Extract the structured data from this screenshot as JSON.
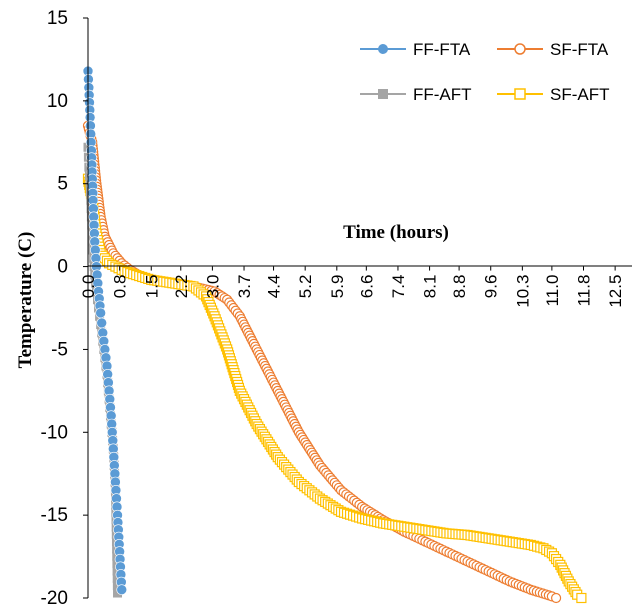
{
  "chart_data": {
    "type": "scatter",
    "title": "",
    "xlabel": "Time (hours)",
    "ylabel": "Temperature (C)",
    "ylim": [
      -20,
      15
    ],
    "xlim": [
      0,
      12.9
    ],
    "y_ticks": [
      "15",
      "10",
      "5",
      "0",
      "-5",
      "-10",
      "-15",
      "-20"
    ],
    "x_ticks": [
      "0.0",
      "0.8",
      "1.5",
      "2.2",
      "3.0",
      "3.7",
      "4.4",
      "5.2",
      "5.9",
      "6.6",
      "7.4",
      "8.1",
      "8.8",
      "9.6",
      "10.3",
      "11.0",
      "11.8",
      "12.5"
    ],
    "x_tick_values": [
      0.0,
      0.75,
      1.5,
      2.2,
      2.95,
      3.7,
      4.4,
      5.15,
      5.9,
      6.6,
      7.35,
      8.1,
      8.8,
      9.55,
      10.3,
      11.0,
      11.75,
      12.5
    ],
    "grid": false,
    "legend_position": "top-right",
    "series": [
      {
        "name": "FF-FTA",
        "color": "#5b9bd5",
        "marker": "filled-circle",
        "x": [
          0.0,
          0.02,
          0.05,
          0.08,
          0.12,
          0.16,
          0.2,
          0.25,
          0.3,
          0.35,
          0.4,
          0.45,
          0.5,
          0.55,
          0.6,
          0.65,
          0.7,
          0.75,
          0.8
        ],
        "y": [
          11.8,
          10.8,
          9.0,
          7.0,
          4.0,
          1.5,
          0.0,
          -1.5,
          -2.8,
          -4.0,
          -5.0,
          -6.0,
          -7.5,
          -9.0,
          -11.0,
          -13.0,
          -15.0,
          -17.2,
          -19.5
        ]
      },
      {
        "name": "SF-FTA",
        "color": "#ed7d31",
        "marker": "open-circle",
        "x": [
          0.0,
          0.1,
          0.2,
          0.3,
          0.4,
          0.6,
          0.8,
          1.0,
          1.2,
          1.5,
          2.0,
          2.5,
          3.0,
          3.3,
          3.6,
          4.0,
          4.5,
          5.0,
          5.5,
          6.0,
          6.5,
          7.0,
          7.5,
          8.0,
          8.5,
          9.0,
          9.5,
          10.0,
          10.5,
          11.0,
          11.1
        ],
        "y": [
          8.5,
          7.5,
          5.0,
          3.0,
          1.8,
          0.8,
          0.2,
          -0.2,
          -0.5,
          -0.8,
          -1.0,
          -1.2,
          -1.5,
          -2.0,
          -3.0,
          -5.0,
          -7.5,
          -10.0,
          -12.0,
          -13.5,
          -14.5,
          -15.3,
          -16.0,
          -16.6,
          -17.2,
          -17.8,
          -18.4,
          -19.0,
          -19.5,
          -19.9,
          -20.0
        ]
      },
      {
        "name": "FF-AFT",
        "color": "#a5a5a5",
        "marker": "filled-square",
        "x": [
          0.0,
          0.02,
          0.05,
          0.08,
          0.12,
          0.16,
          0.2,
          0.25,
          0.3,
          0.35,
          0.4,
          0.45,
          0.5,
          0.55,
          0.6,
          0.65,
          0.7
        ],
        "y": [
          7.2,
          6.0,
          5.0,
          3.0,
          1.0,
          -0.5,
          -1.5,
          -2.5,
          -3.5,
          -4.5,
          -5.5,
          -6.5,
          -8.0,
          -9.5,
          -11.0,
          -13.5,
          -19.7
        ]
      },
      {
        "name": "SF-AFT",
        "color": "#ffc000",
        "marker": "open-square",
        "x": [
          0.0,
          0.1,
          0.2,
          0.3,
          0.5,
          0.8,
          1.0,
          1.5,
          2.0,
          2.5,
          2.8,
          3.0,
          3.3,
          3.6,
          4.0,
          4.5,
          5.0,
          5.5,
          6.0,
          6.5,
          7.0,
          7.5,
          8.0,
          8.5,
          9.0,
          9.5,
          10.0,
          10.5,
          10.8,
          11.0,
          11.2,
          11.4,
          11.6,
          11.7
        ],
        "y": [
          5.3,
          4.0,
          2.0,
          0.8,
          0.2,
          -0.2,
          -0.4,
          -0.8,
          -1.0,
          -1.2,
          -1.8,
          -3.0,
          -5.0,
          -7.5,
          -9.5,
          -11.5,
          -13.0,
          -14.0,
          -14.8,
          -15.2,
          -15.5,
          -15.7,
          -15.9,
          -16.1,
          -16.2,
          -16.4,
          -16.6,
          -16.8,
          -17.0,
          -17.3,
          -18.0,
          -19.0,
          -19.8,
          -20.0
        ]
      }
    ]
  }
}
